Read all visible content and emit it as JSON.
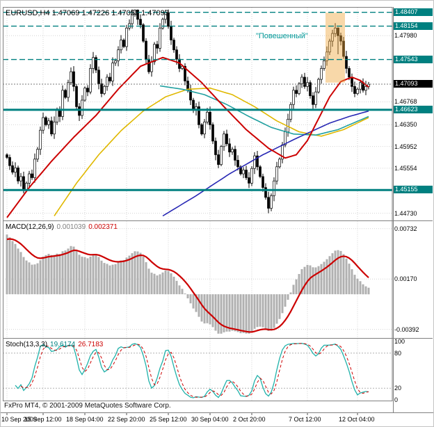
{
  "header": {
    "title_line": "EURUSD,H4 1.47069 1.47226 1.47055 1.47093"
  },
  "annotation": {
    "text": "\"Повешенный\""
  },
  "footer": {
    "copyright": "FxPro MT4, © 2001-2009 MetaQuotes Software Corp."
  },
  "indicators": {
    "macd": {
      "label": "MACD(12,26,9)",
      "value_main": "0.001039",
      "value_signal": "0.002371"
    },
    "stoch": {
      "label": "Stoch(13,3,3)",
      "value_main": "19.6174",
      "value_signal": "26.7183"
    }
  },
  "colors": {
    "teal": "#008080",
    "red": "#cc0000",
    "yellow": "#e0b800",
    "blue": "#2828b4",
    "teal_ma": "#20a0a0",
    "hist": "#b0b0b0",
    "grid": "#d4d4d4",
    "stoch": "#20b2aa",
    "highlight": "#f0a840",
    "annotation": "#009898"
  },
  "chart_data": {
    "type": "candlestick",
    "symbol": "EURUSD",
    "timeframe": "H4",
    "ohlc_display": {
      "open": "1.47069",
      "high": "1.47226",
      "low": "1.47055",
      "close": "1.47093"
    },
    "price_axis": {
      "top": 1.4848,
      "bottom": 1.4461,
      "grid_labels": [
        {
          "text": "1.47980",
          "price": 1.4798
        },
        {
          "text": "1.46768",
          "price": 1.46768
        },
        {
          "text": "1.46350",
          "price": 1.4635
        },
        {
          "text": "1.45952",
          "price": 1.45952
        },
        {
          "text": "1.45554",
          "price": 1.45554
        },
        {
          "text": "1.44730",
          "price": 1.4473
        }
      ],
      "bid": {
        "text": "1.47093",
        "price": 1.47093
      }
    },
    "first_open": 1.458,
    "closes": [
      1.4575,
      1.456,
      1.4548,
      1.4556,
      1.4532,
      1.454,
      1.4516,
      1.4528,
      1.4545,
      1.4538,
      1.4572,
      1.459,
      1.4625,
      1.4648,
      1.4635,
      1.4642,
      1.4618,
      1.464,
      1.4662,
      1.465,
      1.4698,
      1.4685,
      1.4712,
      1.4732,
      1.4705,
      1.4668,
      1.4652,
      1.468,
      1.4702,
      1.4695,
      1.4738,
      1.4758,
      1.4735,
      1.471,
      1.4692,
      1.4705,
      1.4722,
      1.4715,
      1.4748,
      1.4752,
      1.4772,
      1.479,
      1.4778,
      1.4812,
      1.482,
      1.4838,
      1.4845,
      1.4828,
      1.4818,
      1.4788,
      1.4755,
      1.4732,
      1.475,
      1.4782,
      1.4775,
      1.4812,
      1.4828,
      1.484,
      1.4815,
      1.479,
      1.4772,
      1.4755,
      1.4738,
      1.4742,
      1.4715,
      1.4698,
      1.468,
      1.4662,
      1.4668,
      1.4635,
      1.4618,
      1.464,
      1.4658,
      1.4635,
      1.4605,
      1.458,
      1.4562,
      1.4595,
      1.4618,
      1.46,
      1.4585,
      1.459,
      1.457,
      1.4558,
      1.4545,
      1.4552,
      1.4538,
      1.4528,
      1.4555,
      1.4578,
      1.4558,
      1.454,
      1.452,
      1.4502,
      1.4482,
      1.4505,
      1.4532,
      1.4558,
      1.4572,
      1.4598,
      1.4622,
      1.4645,
      1.4672,
      1.4698,
      1.4692,
      1.471,
      1.4722,
      1.4705,
      1.4712,
      1.4688,
      1.4672,
      1.4695,
      1.4718,
      1.4738,
      1.4752,
      1.4768,
      1.4788,
      1.4802,
      1.4812,
      1.4798,
      1.4788,
      1.476,
      1.4738,
      1.4722,
      1.4705,
      1.4692,
      1.47,
      1.4712,
      1.4698,
      1.4705,
      1.4709
    ],
    "ma_lines": [
      {
        "name": "ma-yellow",
        "color": "#e0b800",
        "width": 1.6,
        "anchors": [
          [
            17,
            1.4468
          ],
          [
            25,
            1.4528
          ],
          [
            33,
            1.458
          ],
          [
            41,
            1.4624
          ],
          [
            49,
            1.466
          ],
          [
            57,
            1.4686
          ],
          [
            65,
            1.47
          ],
          [
            73,
            1.4702
          ],
          [
            81,
            1.469
          ],
          [
            89,
            1.4668
          ],
          [
            97,
            1.4642
          ],
          [
            105,
            1.4622
          ],
          [
            113,
            1.4614
          ],
          [
            121,
            1.4626
          ],
          [
            130,
            1.4648
          ]
        ]
      },
      {
        "name": "ma-teal",
        "color": "#20a0a0",
        "width": 1.6,
        "anchors": [
          [
            55,
            1.4706
          ],
          [
            63,
            1.47
          ],
          [
            71,
            1.469
          ],
          [
            79,
            1.4672
          ],
          [
            87,
            1.465
          ],
          [
            95,
            1.463
          ],
          [
            103,
            1.4618
          ],
          [
            111,
            1.4616
          ],
          [
            119,
            1.4626
          ],
          [
            130,
            1.465
          ]
        ]
      },
      {
        "name": "ma-blue",
        "color": "#2828b4",
        "width": 1.6,
        "anchors": [
          [
            56,
            1.4468
          ],
          [
            68,
            1.4505
          ],
          [
            80,
            1.4545
          ],
          [
            92,
            1.458
          ],
          [
            104,
            1.461
          ],
          [
            116,
            1.4638
          ],
          [
            123,
            1.465
          ],
          [
            130,
            1.466
          ]
        ]
      },
      {
        "name": "ma-red",
        "color": "#cc0000",
        "width": 2,
        "anchors": [
          [
            0,
            1.4465
          ],
          [
            8,
            1.452
          ],
          [
            16,
            1.4568
          ],
          [
            24,
            1.4612
          ],
          [
            32,
            1.4652
          ],
          [
            40,
            1.47
          ],
          [
            48,
            1.4742
          ],
          [
            56,
            1.4758
          ],
          [
            62,
            1.4748
          ],
          [
            70,
            1.4712
          ],
          [
            78,
            1.4668
          ],
          [
            86,
            1.4626
          ],
          [
            94,
            1.4592
          ],
          [
            100,
            1.4574
          ],
          [
            104,
            1.458
          ],
          [
            108,
            1.4606
          ],
          [
            112,
            1.4646
          ],
          [
            116,
            1.4686
          ],
          [
            120,
            1.4714
          ],
          [
            124,
            1.4722
          ],
          [
            127,
            1.4716
          ],
          [
            130,
            1.4704
          ]
        ]
      }
    ],
    "sr_lines": [
      {
        "text": "1.48407",
        "price": 1.48407,
        "style": "dashed"
      },
      {
        "text": "1.48154",
        "price": 1.48154,
        "style": "dashed"
      },
      {
        "text": "1.47543",
        "price": 1.47543,
        "style": "dashed"
      },
      {
        "text": "1.46623",
        "price": 1.46623,
        "style": "solid"
      },
      {
        "text": "1.45155",
        "price": 1.45155,
        "style": "solid"
      }
    ],
    "highlight": {
      "from_bar": 114.5,
      "to_bar": 121.5,
      "price_top": 1.484,
      "price_bottom": 1.4712,
      "color": "#f0a840"
    },
    "macd": {
      "top": 0.008,
      "bottom": -0.0048,
      "axis_labels": [
        {
          "text": "0.00732",
          "value": 0.00732
        },
        {
          "text": "0.00170",
          "value": 0.0017
        },
        {
          "text": "-0.00392",
          "value": -0.00392
        }
      ]
    },
    "stoch": {
      "levels": [
        80,
        20
      ],
      "axis_labels": [
        {
          "text": "100",
          "value": 100
        },
        {
          "text": "80",
          "value": 80
        },
        {
          "text": "20",
          "value": 20
        },
        {
          "text": "0",
          "value": 0
        }
      ]
    },
    "time_axis": [
      {
        "text": "10 Sep 2009",
        "bar": 0
      },
      {
        "text": "15 Sep 12:00",
        "bar": 13
      },
      {
        "text": "18 Sep 04:00",
        "bar": 28
      },
      {
        "text": "22 Sep 20:00",
        "bar": 43
      },
      {
        "text": "25 Sep 12:00",
        "bar": 58
      },
      {
        "text": "30 Sep 04:00",
        "bar": 73
      },
      {
        "text": "2 Oct 20:00",
        "bar": 88
      },
      {
        "text": "7 Oct 12:00",
        "bar": 108
      },
      {
        "text": "12 Oct 04:00",
        "bar": 126
      }
    ]
  }
}
